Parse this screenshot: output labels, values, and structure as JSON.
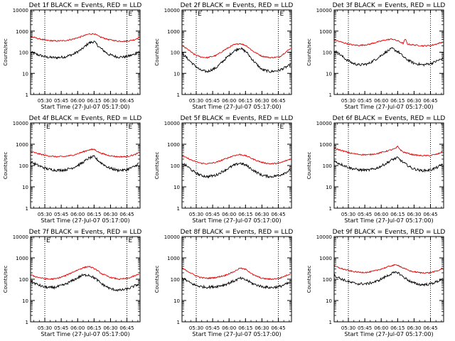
{
  "figure": {
    "colors": {
      "events": "#000000",
      "lld": "#e00000",
      "frame": "#000000",
      "marker": "#000000"
    }
  },
  "chart_data": [
    {
      "type": "line",
      "title": "Det 1f BLACK = Events, RED = LLD",
      "xlabel": "Start Time (27-Jul-07 05:17:00)",
      "ylabel": "Counts/sec",
      "scale_y": "log",
      "ylim": [
        1,
        10000
      ],
      "y_ticks": [
        "1",
        "10",
        "100",
        "1000",
        "10000"
      ],
      "x_ticks": [
        "05:30",
        "05:45",
        "06:00",
        "06:15",
        "06:30",
        "06:45"
      ],
      "x_markers": [
        {
          "label": "",
          "time": "05:30"
        },
        {
          "label": "E",
          "time": "06:45"
        }
      ],
      "series": [
        {
          "name": "Events",
          "color": "#000000",
          "x": [
            "05:17",
            "05:24",
            "05:32",
            "05:40",
            "05:48",
            "05:56",
            "06:04",
            "06:10",
            "06:15",
            "06:20",
            "06:28",
            "06:36",
            "06:44",
            "06:52",
            "06:56"
          ],
          "values": [
            100,
            75,
            58,
            55,
            60,
            80,
            140,
            270,
            320,
            170,
            80,
            60,
            60,
            80,
            110
          ]
        },
        {
          "name": "LLD",
          "color": "#e00000",
          "x": [
            "05:17",
            "05:24",
            "05:32",
            "05:40",
            "05:48",
            "05:56",
            "06:04",
            "06:10",
            "06:15",
            "06:20",
            "06:28",
            "06:36",
            "06:44",
            "06:52",
            "06:56"
          ],
          "values": [
            560,
            440,
            360,
            340,
            350,
            420,
            560,
            720,
            750,
            540,
            400,
            340,
            330,
            390,
            500
          ]
        }
      ]
    },
    {
      "type": "line",
      "title": "Det 2f BLACK = Events, RED = LLD",
      "xlabel": "Start Time (27-Jul-07 05:17:00)",
      "ylabel": "Counts/sec",
      "scale_y": "log",
      "ylim": [
        1,
        10000
      ],
      "y_ticks": [
        "1",
        "10",
        "100",
        "1000",
        "10000"
      ],
      "x_ticks": [
        "05:30",
        "05:45",
        "06:00",
        "06:15",
        "06:30",
        "06:45"
      ],
      "x_markers": [
        {
          "label": "E",
          "time": "05:30"
        },
        {
          "label": "E",
          "time": "06:45"
        }
      ],
      "series": [
        {
          "name": "Events",
          "color": "#000000",
          "x": [
            "05:17",
            "05:22",
            "05:28",
            "05:34",
            "05:40",
            "05:48",
            "05:56",
            "06:04",
            "06:10",
            "06:16",
            "06:22",
            "06:30",
            "06:38",
            "06:46",
            "06:56"
          ],
          "values": [
            90,
            50,
            25,
            14,
            12,
            18,
            45,
            110,
            160,
            100,
            40,
            15,
            12,
            14,
            25
          ]
        },
        {
          "name": "LLD",
          "color": "#e00000",
          "x": [
            "05:17",
            "05:22",
            "05:28",
            "05:34",
            "05:40",
            "05:48",
            "05:56",
            "06:04",
            "06:10",
            "06:16",
            "06:22",
            "06:30",
            "06:38",
            "06:46",
            "06:56"
          ],
          "values": [
            200,
            140,
            80,
            60,
            55,
            70,
            130,
            220,
            260,
            200,
            110,
            65,
            55,
            60,
            150
          ]
        }
      ]
    },
    {
      "type": "line",
      "title": "Det 3f BLACK = Events, RED = LLD",
      "xlabel": "Start Time (27-Jul-07 05:17:00)",
      "ylabel": "Counts/sec",
      "scale_y": "log",
      "ylim": [
        1,
        10000
      ],
      "y_ticks": [
        "1",
        "10",
        "100",
        "1000",
        "10000"
      ],
      "x_ticks": [
        "05:30",
        "05:45",
        "06:00",
        "06:15",
        "06:30",
        "06:45"
      ],
      "x_markers": [
        {
          "label": "",
          "time": "05:30"
        },
        {
          "label": "",
          "time": "06:45"
        }
      ],
      "series": [
        {
          "name": "Events",
          "color": "#000000",
          "x": [
            "05:17",
            "05:22",
            "05:28",
            "05:34",
            "05:40",
            "05:48",
            "05:56",
            "06:04",
            "06:10",
            "06:16",
            "06:22",
            "06:30",
            "06:38",
            "06:46",
            "06:56"
          ],
          "values": [
            120,
            80,
            45,
            30,
            25,
            28,
            50,
            100,
            150,
            100,
            50,
            30,
            25,
            30,
            50
          ]
        },
        {
          "name": "LLD",
          "color": "#e00000",
          "x": [
            "05:17",
            "05:22",
            "05:28",
            "05:34",
            "05:40",
            "05:48",
            "05:56",
            "06:04",
            "06:10",
            "06:16",
            "06:20",
            "06:22",
            "06:24",
            "06:30",
            "06:38",
            "06:46",
            "06:56"
          ],
          "values": [
            380,
            320,
            260,
            220,
            210,
            230,
            300,
            380,
            420,
            330,
            260,
            420,
            240,
            220,
            200,
            210,
            300
          ]
        }
      ]
    },
    {
      "type": "line",
      "title": "Det 4f BLACK = Events, RED = LLD",
      "xlabel": "Start Time (27-Jul-07 05:17:00)",
      "ylabel": "Counts/sec",
      "scale_y": "log",
      "ylim": [
        1,
        10000
      ],
      "y_ticks": [
        "1",
        "10",
        "100",
        "1000",
        "10000"
      ],
      "x_ticks": [
        "05:30",
        "05:45",
        "06:00",
        "06:15",
        "06:30",
        "06:45"
      ],
      "x_markers": [
        {
          "label": "E",
          "time": "05:30"
        },
        {
          "label": "E",
          "time": "06:45"
        }
      ],
      "series": [
        {
          "name": "Events",
          "color": "#000000",
          "x": [
            "05:17",
            "05:24",
            "05:32",
            "05:40",
            "05:48",
            "05:56",
            "06:04",
            "06:10",
            "06:15",
            "06:20",
            "06:28",
            "06:36",
            "06:44",
            "06:52",
            "06:56"
          ],
          "values": [
            150,
            100,
            70,
            60,
            62,
            80,
            130,
            220,
            260,
            150,
            80,
            60,
            62,
            90,
            130
          ]
        },
        {
          "name": "LLD",
          "color": "#e00000",
          "x": [
            "05:17",
            "05:24",
            "05:32",
            "05:40",
            "05:48",
            "05:56",
            "06:04",
            "06:10",
            "06:15",
            "06:20",
            "06:28",
            "06:36",
            "06:44",
            "06:52",
            "06:56"
          ],
          "values": [
            450,
            360,
            290,
            260,
            265,
            310,
            420,
            540,
            580,
            400,
            300,
            260,
            260,
            320,
            400
          ]
        }
      ]
    },
    {
      "type": "line",
      "title": "Det 5f BLACK = Events, RED = LLD",
      "xlabel": "Start Time (27-Jul-07 05:17:00)",
      "ylabel": "Counts/sec",
      "scale_y": "log",
      "ylim": [
        1,
        10000
      ],
      "y_ticks": [
        "1",
        "10",
        "100",
        "1000",
        "10000"
      ],
      "x_ticks": [
        "05:30",
        "05:45",
        "06:00",
        "06:15",
        "06:30",
        "06:45"
      ],
      "x_markers": [
        {
          "label": "",
          "time": "05:30"
        },
        {
          "label": "E",
          "time": "06:45"
        }
      ],
      "series": [
        {
          "name": "Events",
          "color": "#000000",
          "x": [
            "05:17",
            "05:22",
            "05:28",
            "05:34",
            "05:40",
            "05:48",
            "05:56",
            "06:04",
            "06:10",
            "06:16",
            "06:22",
            "06:30",
            "06:38",
            "06:46",
            "06:56"
          ],
          "values": [
            130,
            90,
            50,
            35,
            30,
            35,
            60,
            100,
            130,
            100,
            60,
            35,
            30,
            35,
            60
          ]
        },
        {
          "name": "LLD",
          "color": "#e00000",
          "x": [
            "05:17",
            "05:22",
            "05:28",
            "05:34",
            "05:40",
            "05:48",
            "05:56",
            "06:04",
            "06:10",
            "06:16",
            "06:22",
            "06:30",
            "06:38",
            "06:46",
            "06:56"
          ],
          "values": [
            280,
            220,
            160,
            130,
            120,
            140,
            200,
            290,
            330,
            280,
            200,
            140,
            120,
            130,
            200
          ]
        }
      ]
    },
    {
      "type": "line",
      "title": "Det 6f BLACK = Events, RED = LLD",
      "xlabel": "Start Time (27-Jul-07 05:17:00)",
      "ylabel": "Counts/sec",
      "scale_y": "log",
      "ylim": [
        1,
        10000
      ],
      "y_ticks": [
        "1",
        "10",
        "100",
        "1000",
        "10000"
      ],
      "x_ticks": [
        "05:30",
        "05:45",
        "06:00",
        "06:15",
        "06:30",
        "06:45"
      ],
      "x_markers": [
        {
          "label": "",
          "time": "05:30"
        },
        {
          "label": "",
          "time": "06:45"
        }
      ],
      "series": [
        {
          "name": "Events",
          "color": "#000000",
          "x": [
            "05:17",
            "05:24",
            "05:32",
            "05:40",
            "05:48",
            "05:56",
            "06:04",
            "06:10",
            "06:15",
            "06:20",
            "06:28",
            "06:36",
            "06:44",
            "06:52",
            "06:56"
          ],
          "values": [
            160,
            110,
            75,
            62,
            60,
            75,
            120,
            190,
            230,
            140,
            75,
            58,
            60,
            85,
            120
          ]
        },
        {
          "name": "LLD",
          "color": "#e00000",
          "x": [
            "05:17",
            "05:24",
            "05:32",
            "05:40",
            "05:48",
            "05:56",
            "06:04",
            "06:10",
            "06:13",
            "06:15",
            "06:18",
            "06:20",
            "06:28",
            "06:36",
            "06:44",
            "06:52",
            "06:56"
          ],
          "values": [
            650,
            500,
            380,
            330,
            320,
            360,
            460,
            560,
            620,
            780,
            520,
            430,
            330,
            290,
            290,
            350,
            450
          ]
        }
      ]
    },
    {
      "type": "line",
      "title": "Det 7f BLACK = Events, RED = LLD",
      "xlabel": "Start Time (27-Jul-07 05:17:00)",
      "ylabel": "Counts/sec",
      "scale_y": "log",
      "ylim": [
        1,
        10000
      ],
      "y_ticks": [
        "1",
        "10",
        "100",
        "1000",
        "10000"
      ],
      "x_ticks": [
        "05:30",
        "05:45",
        "06:00",
        "06:15",
        "06:30",
        "06:45"
      ],
      "x_markers": [
        {
          "label": "E",
          "time": "05:30"
        },
        {
          "label": "E",
          "time": "06:45"
        }
      ],
      "series": [
        {
          "name": "Events",
          "color": "#000000",
          "x": [
            "05:17",
            "05:22",
            "05:28",
            "05:34",
            "05:40",
            "05:48",
            "05:56",
            "06:04",
            "06:10",
            "06:16",
            "06:22",
            "06:30",
            "06:38",
            "06:46",
            "06:56"
          ],
          "values": [
            80,
            60,
            45,
            40,
            42,
            55,
            90,
            150,
            160,
            110,
            60,
            35,
            30,
            35,
            60
          ]
        },
        {
          "name": "LLD",
          "color": "#e00000",
          "x": [
            "05:17",
            "05:22",
            "05:28",
            "05:34",
            "05:40",
            "05:48",
            "05:56",
            "06:04",
            "06:10",
            "06:16",
            "06:22",
            "06:30",
            "06:38",
            "06:46",
            "06:56"
          ],
          "values": [
            160,
            130,
            110,
            100,
            105,
            140,
            220,
            330,
            400,
            300,
            180,
            120,
            100,
            110,
            170
          ]
        }
      ]
    },
    {
      "type": "line",
      "title": "Det 8f BLACK = Events, RED = LLD",
      "xlabel": "Start Time (27-Jul-07 05:17:00)",
      "ylabel": "Counts/sec",
      "scale_y": "log",
      "ylim": [
        1,
        10000
      ],
      "y_ticks": [
        "1",
        "10",
        "100",
        "1000",
        "10000"
      ],
      "x_ticks": [
        "05:30",
        "05:45",
        "06:00",
        "06:15",
        "06:30",
        "06:45"
      ],
      "x_markers": [
        {
          "label": "",
          "time": "05:30"
        },
        {
          "label": "",
          "time": "06:45"
        }
      ],
      "series": [
        {
          "name": "Events",
          "color": "#000000",
          "x": [
            "05:17",
            "05:22",
            "05:28",
            "05:34",
            "05:40",
            "05:48",
            "05:56",
            "06:04",
            "06:10",
            "06:16",
            "06:22",
            "06:30",
            "06:38",
            "06:46",
            "06:56"
          ],
          "values": [
            120,
            80,
            55,
            45,
            42,
            45,
            55,
            80,
            110,
            90,
            60,
            45,
            40,
            45,
            70
          ]
        },
        {
          "name": "LLD",
          "color": "#e00000",
          "x": [
            "05:17",
            "05:22",
            "05:28",
            "05:34",
            "05:40",
            "05:48",
            "05:56",
            "06:04",
            "06:10",
            "06:16",
            "06:22",
            "06:30",
            "06:38",
            "06:46",
            "06:56"
          ],
          "values": [
            330,
            240,
            160,
            120,
            110,
            120,
            150,
            220,
            330,
            280,
            160,
            110,
            100,
            110,
            180
          ]
        }
      ]
    },
    {
      "type": "line",
      "title": "Det 9f BLACK = Events, RED = LLD",
      "xlabel": "Start Time (27-Jul-07 05:17:00)",
      "ylabel": "Counts/sec",
      "scale_y": "log",
      "ylim": [
        1,
        10000
      ],
      "y_ticks": [
        "1",
        "10",
        "100",
        "1000",
        "10000"
      ],
      "x_ticks": [
        "05:30",
        "05:45",
        "06:00",
        "06:15",
        "06:30",
        "06:45"
      ],
      "x_markers": [
        {
          "label": "",
          "time": "05:30"
        },
        {
          "label": "",
          "time": "06:45"
        }
      ],
      "series": [
        {
          "name": "Events",
          "color": "#000000",
          "x": [
            "05:17",
            "05:24",
            "05:32",
            "05:40",
            "05:48",
            "05:56",
            "06:04",
            "06:10",
            "06:15",
            "06:20",
            "06:28",
            "06:36",
            "06:44",
            "06:52",
            "06:56"
          ],
          "values": [
            150,
            100,
            70,
            60,
            62,
            80,
            130,
            190,
            210,
            130,
            70,
            55,
            58,
            80,
            110
          ]
        },
        {
          "name": "LLD",
          "color": "#e00000",
          "x": [
            "05:17",
            "05:24",
            "05:32",
            "05:40",
            "05:48",
            "05:56",
            "06:04",
            "06:10",
            "06:15",
            "06:20",
            "06:28",
            "06:36",
            "06:44",
            "06:52",
            "06:56"
          ],
          "values": [
            420,
            310,
            240,
            210,
            210,
            260,
            350,
            440,
            470,
            330,
            230,
            200,
            200,
            250,
            330
          ]
        }
      ]
    }
  ]
}
